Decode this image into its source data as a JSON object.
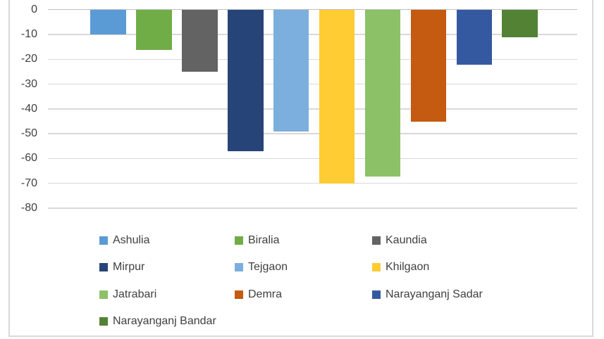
{
  "chart_data": {
    "type": "bar",
    "title": "",
    "orientation": "vertical",
    "categories": [],
    "series": [
      {
        "name": "Ashulia",
        "value": -10,
        "color": "#5B9BD5"
      },
      {
        "name": "Biralia",
        "value": -16,
        "color": "#70AD47"
      },
      {
        "name": "Kaundia",
        "value": -25,
        "color": "#636363"
      },
      {
        "name": "Mirpur",
        "value": -57,
        "color": "#264478"
      },
      {
        "name": "Tejgaon",
        "value": -49,
        "color": "#7CAFDD"
      },
      {
        "name": "Khilgaon",
        "value": -70,
        "color": "#FFCC33"
      },
      {
        "name": "Jatrabari",
        "value": -67,
        "color": "#8CC168"
      },
      {
        "name": "Demra",
        "value": -45,
        "color": "#C55A11"
      },
      {
        "name": "Narayanganj Sadar",
        "value": -22,
        "color": "#3559A0"
      },
      {
        "name": "Narayanganj Bandar",
        "value": -11,
        "color": "#548235"
      }
    ],
    "ylim": [
      -80,
      0
    ],
    "yticks": [
      0,
      -10,
      -20,
      -30,
      -40,
      -50,
      -60,
      -70,
      -80
    ],
    "ytick_labels": [
      "0",
      "-10",
      "-20",
      "-30",
      "-40",
      "-50",
      "-60",
      "-70",
      "-80"
    ],
    "grid": true,
    "legend_position": "bottom",
    "legend_rows": [
      [
        "Ashulia",
        "Biralia",
        "Kaundia"
      ],
      [
        "Mirpur",
        "Tejgaon",
        "Khilgaon"
      ],
      [
        "Jatrabari",
        "Demra",
        "Narayanganj Sadar"
      ],
      [
        "Narayanganj Bandar"
      ]
    ]
  },
  "style": {
    "background": "#FFFFFF",
    "border_color": "#D9D9D9",
    "gridline_color": "#D9D9D9",
    "zero_line_color": "#BFBFBF",
    "text_color": "#404040"
  }
}
